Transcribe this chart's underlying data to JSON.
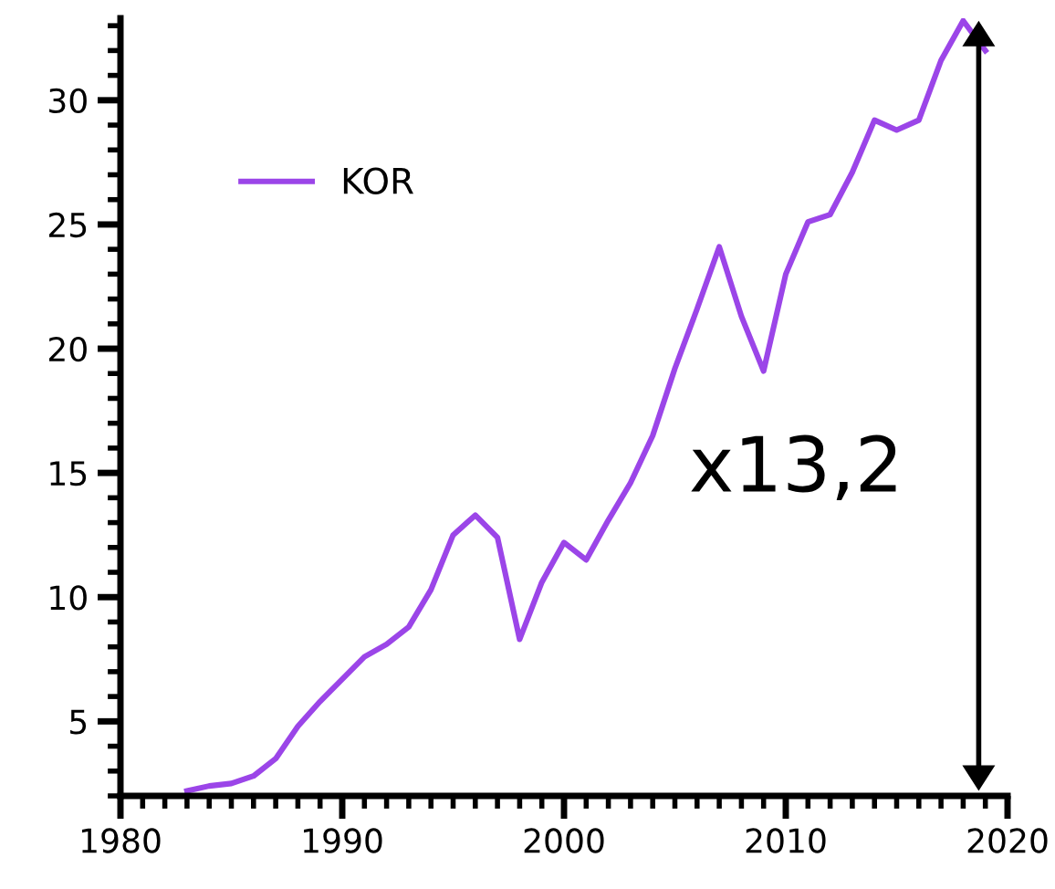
{
  "chart_data": {
    "type": "line",
    "x": [
      1983,
      1984,
      1985,
      1986,
      1987,
      1988,
      1989,
      1990,
      1991,
      1992,
      1993,
      1994,
      1995,
      1996,
      1997,
      1998,
      1999,
      2000,
      2001,
      2002,
      2003,
      2004,
      2005,
      2006,
      2007,
      2008,
      2009,
      2010,
      2011,
      2012,
      2013,
      2014,
      2015,
      2016,
      2017,
      2018,
      2019
    ],
    "series": [
      {
        "name": "KOR",
        "color": "#9b45e8",
        "values": [
          2.2,
          2.4,
          2.5,
          2.8,
          3.5,
          4.8,
          5.8,
          6.7,
          7.6,
          8.1,
          8.8,
          10.3,
          12.5,
          13.3,
          12.4,
          8.3,
          10.6,
          12.2,
          11.5,
          13.1,
          14.6,
          16.5,
          19.2,
          21.6,
          24.1,
          21.3,
          19.1,
          23.0,
          25.1,
          25.4,
          27.1,
          29.2,
          28.8,
          29.2,
          31.6,
          33.2,
          32.0
        ]
      }
    ],
    "xlim": [
      1980,
      2020
    ],
    "xticks": [
      1980,
      1990,
      2000,
      2010,
      2020
    ],
    "ylim": [
      2,
      33.3
    ],
    "yticks": [
      5,
      10,
      15,
      20,
      25,
      30
    ],
    "annotations": [
      "x13,2"
    ],
    "legend": "top left",
    "grid": false,
    "marker": "none",
    "line_style": "solid"
  }
}
